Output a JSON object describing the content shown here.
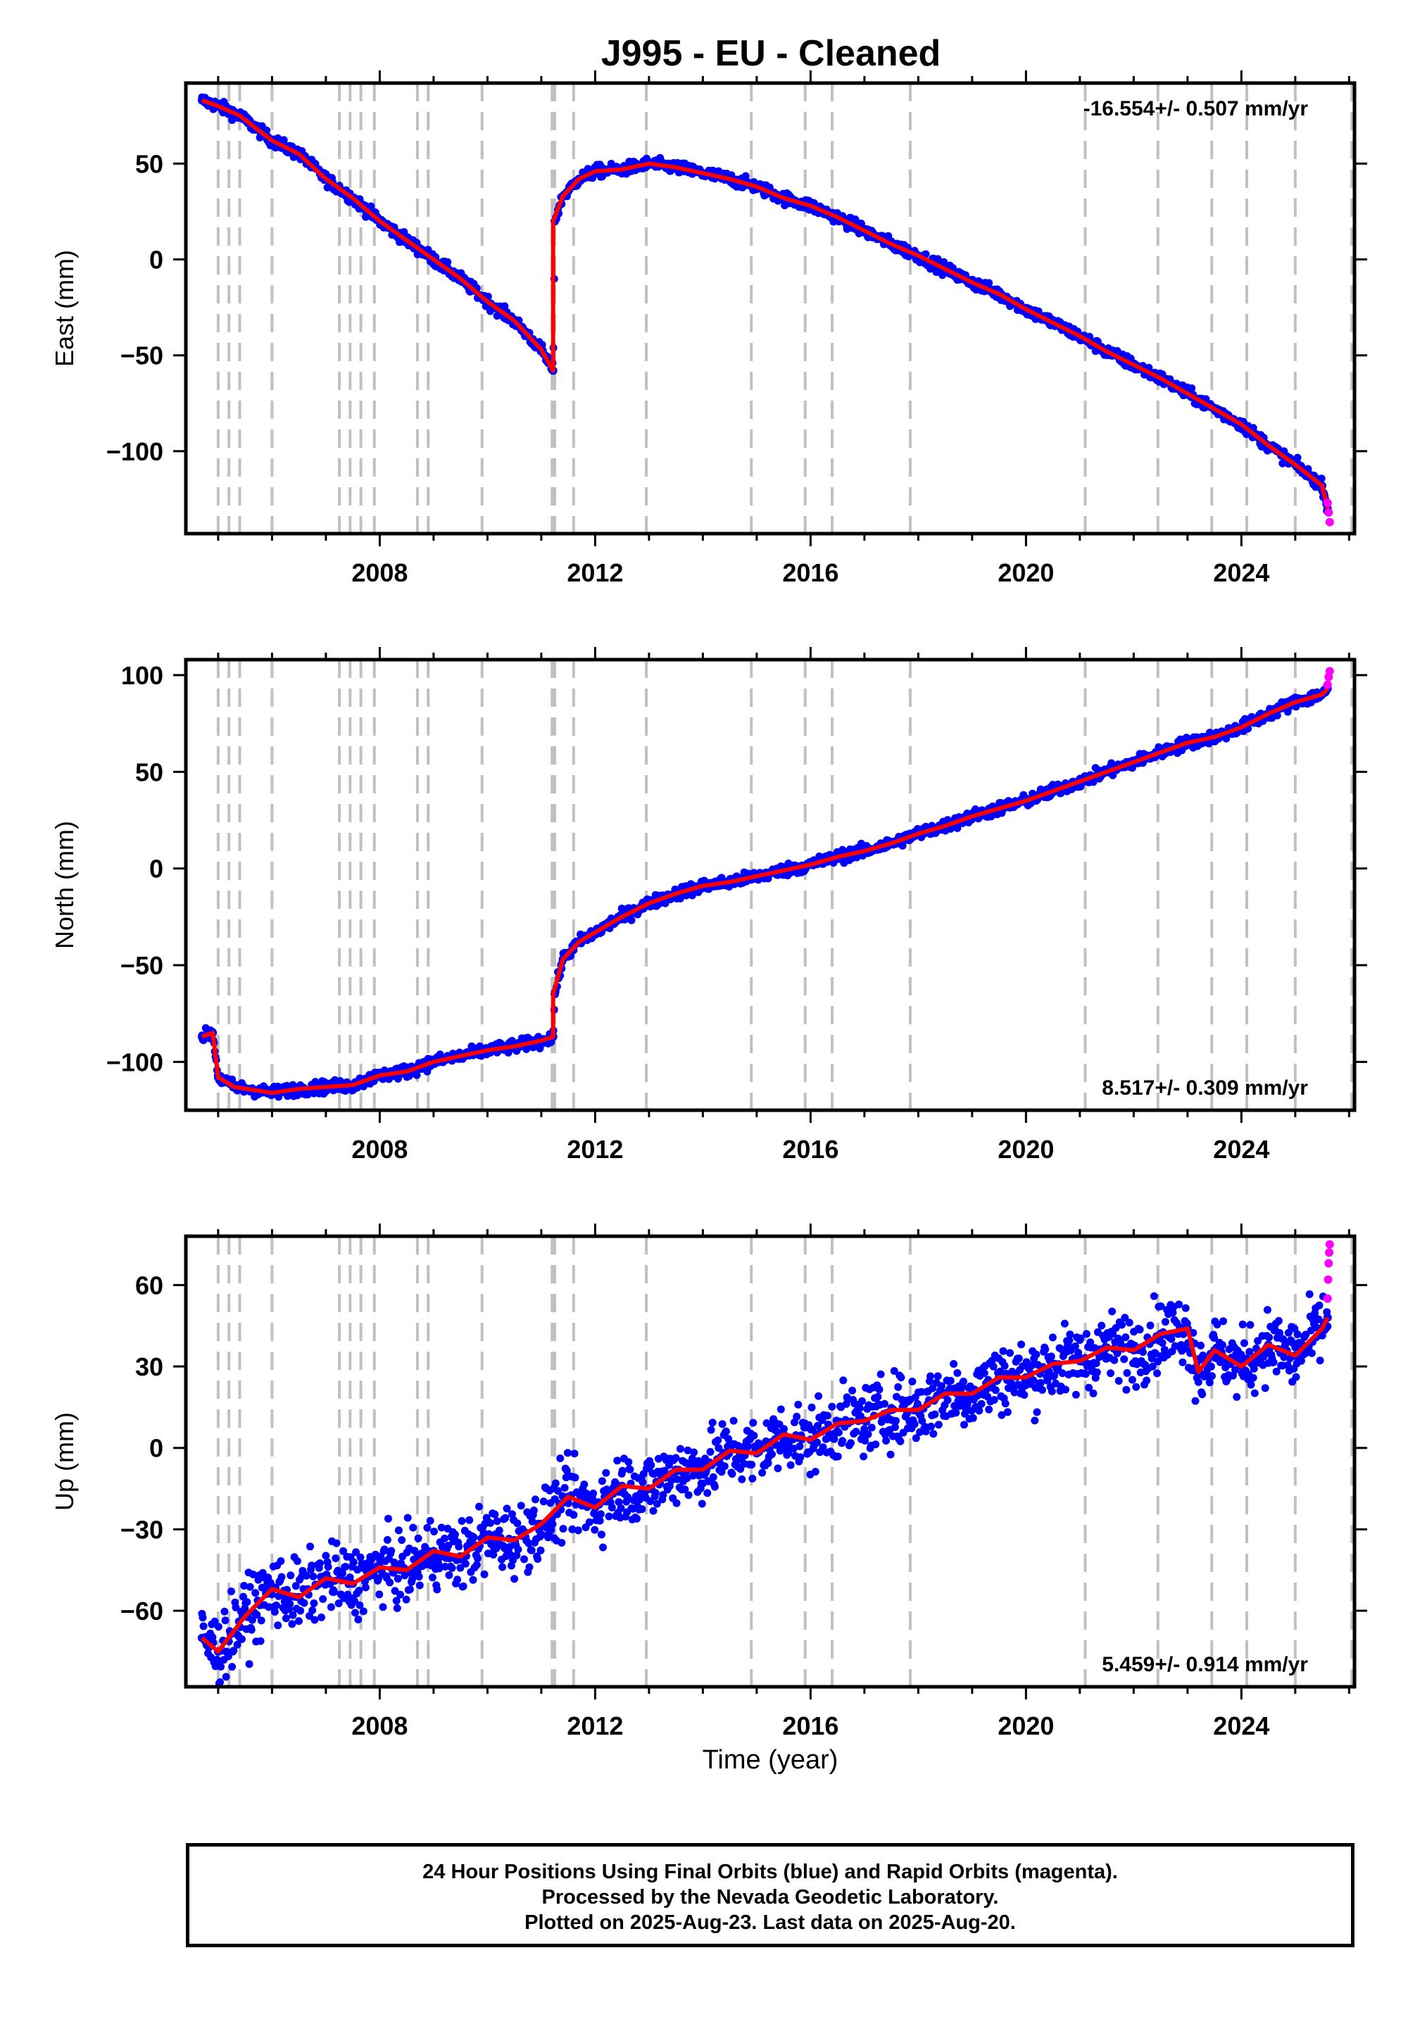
{
  "title": "J995  - EU - Cleaned",
  "xlabel": "Time (year)",
  "footer": {
    "line1": "24 Hour Positions Using Final Orbits (blue) and Rapid Orbits (magenta).",
    "line2": "Processed by the Nevada Geodetic Laboratory.",
    "line3": "Plotted on 2025-Aug-23. Last data on 2025-Aug-20."
  },
  "colors": {
    "final": "#0000ff",
    "rapid": "#ff00ff",
    "model": "#ff0000",
    "events": "#c0c0c0"
  },
  "chart_data": [
    {
      "type": "scatter",
      "ylabel": "East (mm)",
      "rate_label": "-16.554+/- 0.507 mm/yr",
      "rate_position": "top-right",
      "xlim": [
        2004.4,
        2026.1
      ],
      "ylim": [
        -143,
        92
      ],
      "xticks": [
        2008,
        2012,
        2016,
        2020,
        2024
      ],
      "yticks": [
        50,
        0,
        -50,
        -100
      ],
      "ytick_labels": [
        "50",
        "0",
        "−50",
        "−100"
      ],
      "grid": false,
      "event_lines": [
        2005.0,
        2005.2,
        2005.4,
        2006.0,
        2007.25,
        2007.45,
        2007.65,
        2007.9,
        2008.7,
        2008.9,
        2009.9,
        2011.2,
        2011.25,
        2011.6,
        2012.95,
        2014.9,
        2015.9,
        2016.4,
        2017.85,
        2021.1,
        2022.45,
        2023.45,
        2024.1,
        2025.0,
        2026.05
      ],
      "series": [
        {
          "role": "final",
          "x": [
            2004.7,
            2005.0,
            2005.4,
            2006.0,
            2006.5,
            2007.0,
            2007.5,
            2008.0,
            2008.5,
            2009.0,
            2009.5,
            2010.0,
            2010.5,
            2011.0,
            2011.22,
            2011.25,
            2011.4,
            2011.7,
            2012.0,
            2012.5,
            2013.0,
            2013.5,
            2014.0,
            2014.5,
            2015.0,
            2015.5,
            2016.0,
            2016.5,
            2017.0,
            2017.5,
            2018.0,
            2018.5,
            2019.0,
            2019.5,
            2020.0,
            2020.5,
            2021.0,
            2021.5,
            2022.0,
            2022.5,
            2023.0,
            2023.5,
            2024.0,
            2024.5,
            2025.0,
            2025.5,
            2025.6
          ],
          "y": [
            83,
            80,
            75,
            62,
            55,
            42,
            32,
            20,
            10,
            0,
            -10,
            -22,
            -32,
            -47,
            -58,
            20,
            33,
            42,
            46,
            47,
            50,
            48,
            45,
            42,
            38,
            32,
            28,
            22,
            15,
            8,
            2,
            -5,
            -12,
            -18,
            -26,
            -33,
            -40,
            -48,
            -55,
            -62,
            -70,
            -78,
            -86,
            -97,
            -107,
            -118,
            -130
          ]
        },
        {
          "role": "rapid",
          "x": [
            2025.6,
            2025.62,
            2025.64
          ],
          "y": [
            -127,
            -132,
            -137
          ]
        }
      ],
      "model": {
        "x": [
          2004.7,
          2005.0,
          2005.4,
          2006.0,
          2006.5,
          2007.0,
          2007.5,
          2008.0,
          2008.5,
          2009.0,
          2009.5,
          2010.0,
          2010.5,
          2011.0,
          2011.22,
          2011.22,
          2011.4,
          2011.7,
          2012.0,
          2012.5,
          2013.0,
          2013.5,
          2014.0,
          2014.5,
          2015.0,
          2015.5,
          2016.0,
          2016.5,
          2017.0,
          2017.5,
          2018.0,
          2018.5,
          2019.0,
          2019.5,
          2020.0,
          2020.5,
          2021.0,
          2021.5,
          2022.0,
          2022.5,
          2023.0,
          2023.5,
          2024.0,
          2024.5,
          2025.0,
          2025.5,
          2025.6
        ],
        "y": [
          83,
          80,
          75,
          62,
          55,
          42,
          32,
          20,
          10,
          0,
          -10,
          -22,
          -32,
          -47,
          -58,
          20,
          33,
          42,
          46,
          47,
          50,
          48,
          45,
          42,
          38,
          32,
          28,
          22,
          15,
          8,
          2,
          -5,
          -12,
          -18,
          -26,
          -33,
          -40,
          -48,
          -55,
          -62,
          -70,
          -78,
          -86,
          -97,
          -107,
          -118,
          -130
        ]
      }
    },
    {
      "type": "scatter",
      "ylabel": "North (mm)",
      "rate_label": "8.517+/- 0.309 mm/yr",
      "rate_position": "bottom-right",
      "xlim": [
        2004.4,
        2026.1
      ],
      "ylim": [
        -125,
        108
      ],
      "xticks": [
        2008,
        2012,
        2016,
        2020,
        2024
      ],
      "yticks": [
        100,
        50,
        0,
        -50,
        -100
      ],
      "ytick_labels": [
        "100",
        "50",
        "0",
        "−50",
        "−100"
      ],
      "grid": false,
      "event_lines": [
        2005.0,
        2005.2,
        2005.4,
        2006.0,
        2007.25,
        2007.45,
        2007.65,
        2007.9,
        2008.7,
        2008.9,
        2009.9,
        2011.2,
        2011.25,
        2011.6,
        2012.95,
        2014.9,
        2015.9,
        2016.4,
        2017.85,
        2021.1,
        2022.45,
        2023.45,
        2024.1,
        2025.0,
        2026.05
      ],
      "series": [
        {
          "role": "final",
          "x": [
            2004.7,
            2004.9,
            2005.0,
            2005.3,
            2006.0,
            2006.5,
            2007.0,
            2007.5,
            2008.0,
            2008.5,
            2009.0,
            2009.5,
            2010.0,
            2010.5,
            2011.0,
            2011.22,
            2011.25,
            2011.4,
            2011.7,
            2012.0,
            2012.5,
            2013.0,
            2013.5,
            2014.0,
            2014.5,
            2015.0,
            2015.5,
            2016.0,
            2016.5,
            2017.0,
            2017.5,
            2018.0,
            2018.5,
            2019.0,
            2019.5,
            2020.0,
            2020.5,
            2021.0,
            2021.5,
            2022.0,
            2022.5,
            2023.0,
            2023.5,
            2024.0,
            2024.5,
            2025.0,
            2025.5,
            2025.6
          ],
          "y": [
            -87,
            -85,
            -108,
            -113,
            -116,
            -114,
            -113,
            -112,
            -107,
            -105,
            -100,
            -97,
            -94,
            -92,
            -89,
            -87,
            -65,
            -47,
            -38,
            -33,
            -25,
            -18,
            -13,
            -9,
            -7,
            -4,
            -1,
            2,
            6,
            9,
            13,
            18,
            22,
            27,
            31,
            35,
            40,
            45,
            50,
            55,
            60,
            65,
            68,
            73,
            80,
            86,
            90,
            93
          ]
        },
        {
          "role": "rapid",
          "x": [
            2025.6,
            2025.62,
            2025.64
          ],
          "y": [
            95,
            99,
            102
          ]
        }
      ],
      "model": {
        "x": [
          2004.7,
          2004.9,
          2005.0,
          2005.3,
          2006.0,
          2006.5,
          2007.0,
          2007.5,
          2008.0,
          2008.5,
          2009.0,
          2009.5,
          2010.0,
          2010.5,
          2011.0,
          2011.22,
          2011.22,
          2011.4,
          2011.7,
          2012.0,
          2012.5,
          2013.0,
          2013.5,
          2014.0,
          2014.5,
          2015.0,
          2015.5,
          2016.0,
          2016.5,
          2017.0,
          2017.5,
          2018.0,
          2018.5,
          2019.0,
          2019.5,
          2020.0,
          2020.5,
          2021.0,
          2021.5,
          2022.0,
          2022.5,
          2023.0,
          2023.5,
          2024.0,
          2024.5,
          2025.0,
          2025.5,
          2025.6
        ],
        "y": [
          -87,
          -85,
          -108,
          -113,
          -116,
          -114,
          -113,
          -112,
          -107,
          -105,
          -100,
          -97,
          -94,
          -92,
          -89,
          -87,
          -65,
          -47,
          -38,
          -33,
          -25,
          -18,
          -13,
          -9,
          -7,
          -4,
          -1,
          2,
          6,
          9,
          13,
          18,
          22,
          27,
          31,
          35,
          40,
          45,
          50,
          55,
          60,
          65,
          68,
          73,
          80,
          86,
          90,
          93
        ]
      }
    },
    {
      "type": "scatter",
      "ylabel": "Up (mm)",
      "rate_label": "5.459+/- 0.914 mm/yr",
      "rate_position": "bottom-right",
      "xlim": [
        2004.4,
        2026.1
      ],
      "ylim": [
        -88,
        78
      ],
      "xticks": [
        2008,
        2012,
        2016,
        2020,
        2024
      ],
      "yticks": [
        60,
        30,
        0,
        -30,
        -60
      ],
      "ytick_labels": [
        "60",
        "30",
        "0",
        "−30",
        "−60"
      ],
      "grid": false,
      "event_lines": [
        2005.0,
        2005.2,
        2005.4,
        2006.0,
        2007.25,
        2007.45,
        2007.65,
        2007.9,
        2008.7,
        2008.9,
        2009.9,
        2011.2,
        2011.25,
        2011.6,
        2012.95,
        2014.9,
        2015.9,
        2016.4,
        2017.85,
        2021.1,
        2022.45,
        2023.45,
        2024.1,
        2025.0,
        2026.05
      ],
      "series": [
        {
          "role": "final",
          "x": [
            2004.7,
            2005.0,
            2005.5,
            2006.0,
            2006.5,
            2007.0,
            2007.5,
            2008.0,
            2008.5,
            2009.0,
            2009.5,
            2010.0,
            2010.5,
            2011.0,
            2011.5,
            2012.0,
            2012.5,
            2013.0,
            2013.5,
            2014.0,
            2014.5,
            2015.0,
            2015.5,
            2016.0,
            2016.5,
            2017.0,
            2017.5,
            2018.0,
            2018.5,
            2019.0,
            2019.5,
            2020.0,
            2020.5,
            2021.0,
            2021.5,
            2022.0,
            2022.5,
            2023.0,
            2023.2,
            2023.5,
            2024.0,
            2024.5,
            2025.0,
            2025.5,
            2025.6
          ],
          "y": [
            -70,
            -75,
            -62,
            -52,
            -55,
            -48,
            -50,
            -44,
            -45,
            -38,
            -40,
            -33,
            -34,
            -28,
            -18,
            -22,
            -14,
            -15,
            -8,
            -8,
            -1,
            -2,
            5,
            3,
            9,
            10,
            14,
            14,
            20,
            20,
            26,
            26,
            31,
            32,
            37,
            36,
            42,
            44,
            28,
            36,
            30,
            38,
            34,
            44,
            48
          ]
        },
        {
          "role": "rapid",
          "x": [
            2025.6,
            2025.61,
            2025.62,
            2025.63,
            2025.64
          ],
          "y": [
            55,
            62,
            68,
            72,
            75
          ]
        }
      ],
      "model": {
        "x": [
          2004.7,
          2005.0,
          2005.5,
          2006.0,
          2006.5,
          2007.0,
          2007.5,
          2008.0,
          2008.5,
          2009.0,
          2009.5,
          2010.0,
          2010.5,
          2011.0,
          2011.5,
          2012.0,
          2012.5,
          2013.0,
          2013.5,
          2014.0,
          2014.5,
          2015.0,
          2015.5,
          2016.0,
          2016.5,
          2017.0,
          2017.5,
          2018.0,
          2018.5,
          2019.0,
          2019.5,
          2020.0,
          2020.5,
          2021.0,
          2021.5,
          2022.0,
          2022.5,
          2023.0,
          2023.2,
          2023.5,
          2024.0,
          2024.5,
          2025.0,
          2025.5,
          2025.6
        ],
        "y": [
          -70,
          -75,
          -62,
          -52,
          -55,
          -48,
          -50,
          -44,
          -45,
          -38,
          -40,
          -33,
          -34,
          -28,
          -18,
          -22,
          -14,
          -15,
          -8,
          -8,
          -1,
          -2,
          5,
          3,
          9,
          10,
          14,
          14,
          20,
          20,
          26,
          26,
          31,
          32,
          37,
          36,
          42,
          44,
          28,
          36,
          30,
          38,
          34,
          44,
          48
        ]
      }
    }
  ]
}
